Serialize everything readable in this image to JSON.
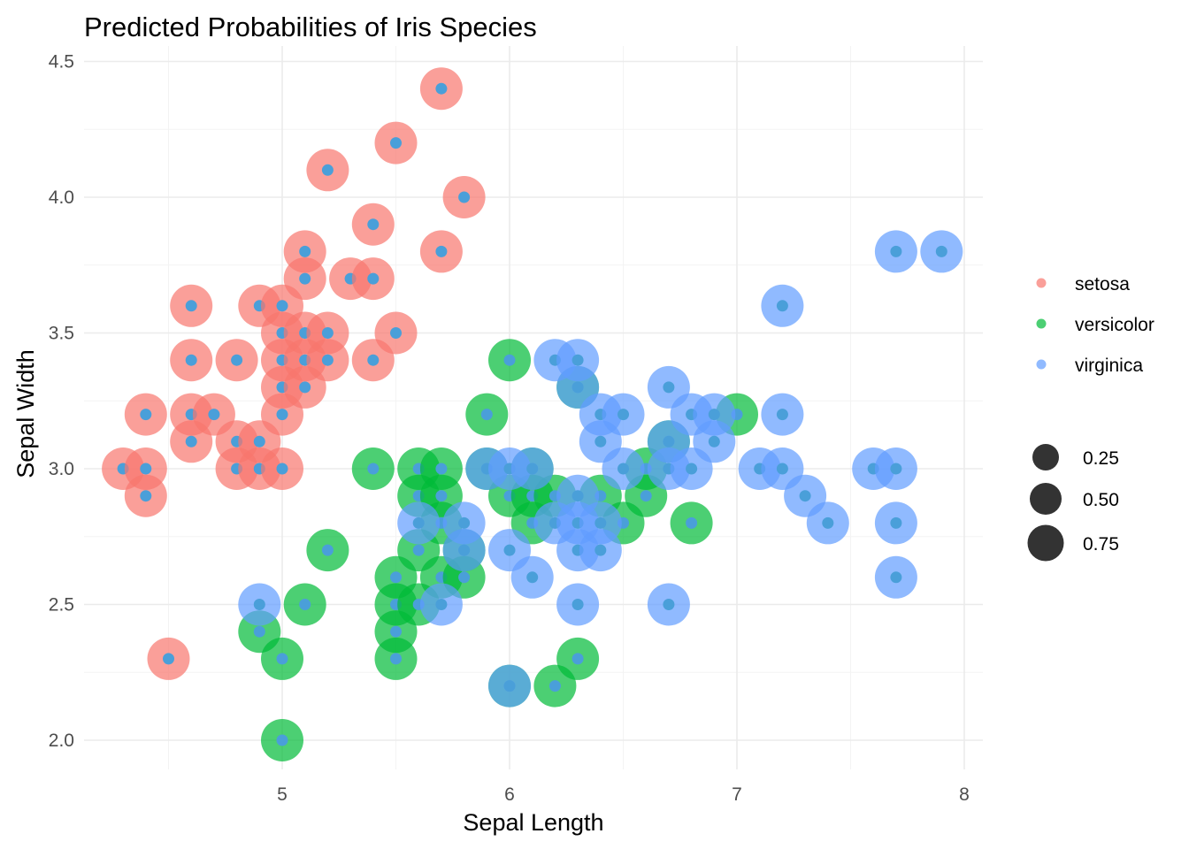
{
  "chart_data": {
    "type": "scatter",
    "title": "Predicted Probabilities of Iris Species",
    "xlabel": "Sepal Length",
    "ylabel": "Sepal Width",
    "xlim": [
      4.2,
      8.1
    ],
    "ylim": [
      1.9,
      4.5
    ],
    "x_ticks": [
      "5",
      "6",
      "7",
      "8"
    ],
    "y_ticks": [
      "2.0",
      "2.5",
      "3.0",
      "3.5",
      "4.0",
      "4.5"
    ],
    "grid": true,
    "legend_position": "right",
    "colors": {
      "setosa": "#F8766D",
      "versicolor": "#00BA38",
      "virginica": "#619CFF",
      "inner_point": "#4A9FD9",
      "size_legend": "#333333"
    },
    "series": [
      {
        "name": "setosa",
        "points": [
          [
            4.3,
            3.0
          ],
          [
            4.4,
            3.0
          ],
          [
            4.4,
            2.9
          ],
          [
            4.4,
            3.2
          ],
          [
            4.5,
            2.3
          ],
          [
            4.6,
            3.6
          ],
          [
            4.6,
            3.4
          ],
          [
            4.6,
            3.2
          ],
          [
            4.6,
            3.1
          ],
          [
            4.7,
            3.2
          ],
          [
            4.8,
            3.4
          ],
          [
            4.8,
            3.1
          ],
          [
            4.8,
            3.0
          ],
          [
            4.9,
            3.6
          ],
          [
            4.9,
            3.1
          ],
          [
            4.9,
            3.0
          ],
          [
            5.0,
            3.6
          ],
          [
            5.0,
            3.5
          ],
          [
            5.0,
            3.4
          ],
          [
            5.0,
            3.3
          ],
          [
            5.0,
            3.2
          ],
          [
            5.0,
            3.0
          ],
          [
            5.1,
            3.8
          ],
          [
            5.1,
            3.7
          ],
          [
            5.1,
            3.5
          ],
          [
            5.1,
            3.4
          ],
          [
            5.1,
            3.3
          ],
          [
            5.2,
            4.1
          ],
          [
            5.2,
            3.5
          ],
          [
            5.2,
            3.4
          ],
          [
            5.3,
            3.7
          ],
          [
            5.4,
            3.9
          ],
          [
            5.4,
            3.7
          ],
          [
            5.4,
            3.4
          ],
          [
            5.5,
            4.2
          ],
          [
            5.5,
            3.5
          ],
          [
            5.7,
            4.4
          ],
          [
            5.7,
            3.8
          ],
          [
            5.8,
            4.0
          ]
        ]
      },
      {
        "name": "versicolor",
        "points": [
          [
            4.9,
            2.4
          ],
          [
            5.0,
            2.3
          ],
          [
            5.0,
            2.0
          ],
          [
            5.1,
            2.5
          ],
          [
            5.2,
            2.7
          ],
          [
            5.4,
            3.0
          ],
          [
            5.5,
            2.6
          ],
          [
            5.5,
            2.5
          ],
          [
            5.5,
            2.4
          ],
          [
            5.5,
            2.3
          ],
          [
            5.6,
            3.0
          ],
          [
            5.6,
            2.9
          ],
          [
            5.6,
            2.7
          ],
          [
            5.6,
            2.5
          ],
          [
            5.7,
            3.0
          ],
          [
            5.7,
            2.9
          ],
          [
            5.7,
            2.8
          ],
          [
            5.7,
            2.6
          ],
          [
            5.8,
            2.7
          ],
          [
            5.8,
            2.6
          ],
          [
            5.9,
            3.2
          ],
          [
            5.9,
            3.0
          ],
          [
            6.0,
            3.4
          ],
          [
            6.0,
            2.9
          ],
          [
            6.0,
            2.2
          ],
          [
            6.1,
            3.0
          ],
          [
            6.1,
            2.9
          ],
          [
            6.1,
            2.8
          ],
          [
            6.2,
            2.9
          ],
          [
            6.2,
            2.2
          ],
          [
            6.3,
            3.3
          ],
          [
            6.3,
            2.3
          ],
          [
            6.4,
            2.9
          ],
          [
            6.5,
            2.8
          ],
          [
            6.6,
            3.0
          ],
          [
            6.6,
            2.9
          ],
          [
            6.7,
            3.1
          ],
          [
            6.8,
            2.8
          ],
          [
            7.0,
            3.2
          ]
        ]
      },
      {
        "name": "virginica",
        "points": [
          [
            4.9,
            2.5
          ],
          [
            5.6,
            2.8
          ],
          [
            5.7,
            2.5
          ],
          [
            5.8,
            2.8
          ],
          [
            5.8,
            2.7
          ],
          [
            5.9,
            3.0
          ],
          [
            6.0,
            3.0
          ],
          [
            6.0,
            2.7
          ],
          [
            6.0,
            2.2
          ],
          [
            6.1,
            3.0
          ],
          [
            6.1,
            2.6
          ],
          [
            6.2,
            3.4
          ],
          [
            6.2,
            2.8
          ],
          [
            6.3,
            3.4
          ],
          [
            6.3,
            3.3
          ],
          [
            6.3,
            2.9
          ],
          [
            6.3,
            2.8
          ],
          [
            6.3,
            2.7
          ],
          [
            6.3,
            2.5
          ],
          [
            6.4,
            3.2
          ],
          [
            6.4,
            3.1
          ],
          [
            6.4,
            2.8
          ],
          [
            6.4,
            2.7
          ],
          [
            6.5,
            3.2
          ],
          [
            6.5,
            3.0
          ],
          [
            6.7,
            3.3
          ],
          [
            6.7,
            3.1
          ],
          [
            6.7,
            3.0
          ],
          [
            6.7,
            2.5
          ],
          [
            6.8,
            3.2
          ],
          [
            6.8,
            3.0
          ],
          [
            6.9,
            3.2
          ],
          [
            6.9,
            3.1
          ],
          [
            7.1,
            3.0
          ],
          [
            7.2,
            3.6
          ],
          [
            7.2,
            3.2
          ],
          [
            7.2,
            3.0
          ],
          [
            7.3,
            2.9
          ],
          [
            7.4,
            2.8
          ],
          [
            7.6,
            3.0
          ],
          [
            7.7,
            3.8
          ],
          [
            7.7,
            3.0
          ],
          [
            7.7,
            2.8
          ],
          [
            7.7,
            2.6
          ],
          [
            7.9,
            3.8
          ]
        ]
      }
    ],
    "size_legend": [
      {
        "label": "0.25",
        "value": 0.25
      },
      {
        "label": "0.50",
        "value": 0.5
      },
      {
        "label": "0.75",
        "value": 0.75
      }
    ]
  }
}
